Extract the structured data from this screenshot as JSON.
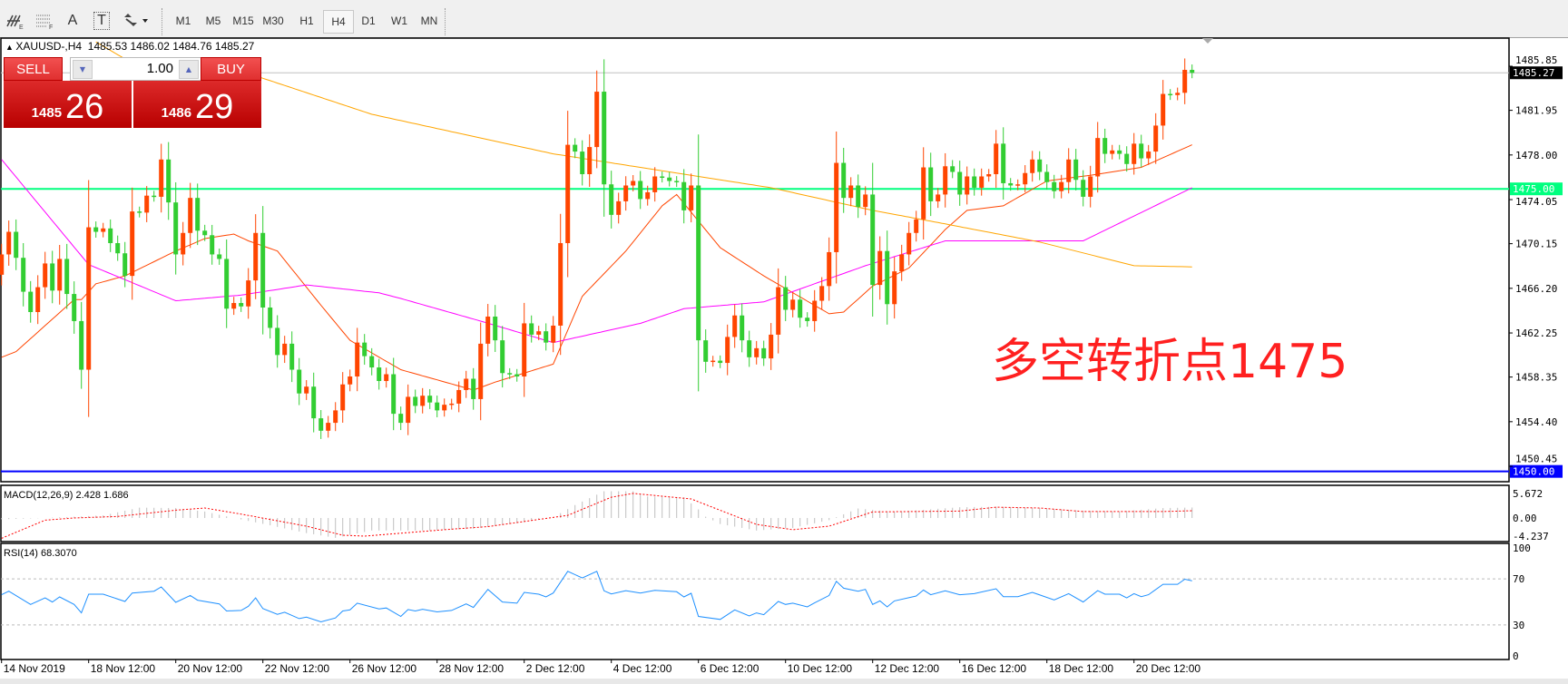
{
  "toolbar": {
    "tools": [
      {
        "icon": "elliott-wave-icon"
      },
      {
        "icon": "fibonacci-icon"
      },
      {
        "icon": "text-icon",
        "label": "A"
      },
      {
        "icon": "text-label-icon",
        "label": "T"
      },
      {
        "icon": "arrows-dropdown-icon"
      }
    ],
    "timeframes": [
      "M1",
      "M5",
      "M15",
      "M30",
      "H1",
      "H4",
      "D1",
      "W1",
      "MN"
    ],
    "selected_timeframe": "H4"
  },
  "chart_header": {
    "symbol": "XAUUSD-,H4",
    "ohlc": "1485.53 1486.02 1484.76 1485.27"
  },
  "trade_panel": {
    "sell_label": "SELL",
    "buy_label": "BUY",
    "volume": "1.00",
    "sell_price_big": "1485",
    "sell_price_pips": "26",
    "buy_price_big": "1486",
    "buy_price_pips": "29"
  },
  "annotation": "多空转折点1475",
  "colors": {
    "bull_candle": "#ff4500",
    "bear_candle": "#32cd32",
    "ma_fast": "#ff4500",
    "ma_mid": "#ff00ff",
    "ma_slow": "#ffa500",
    "level_green": "#00ff7f",
    "level_blue": "#0000ff",
    "bid_line": "#c0c0c0",
    "rsi": "#1e90ff",
    "macd_signal": "#ff0000",
    "macd_hist": "#c0c0c0"
  },
  "chart_data": {
    "type": "candlestick",
    "symbol": "XAUUSD-",
    "timeframe": "H4",
    "ylim": [
      1449.09,
      1488.34
    ],
    "first_open": 1467.4,
    "close": [
      1469.2,
      1471.2,
      1468.9,
      1465.9,
      1464.1,
      1466.3,
      1468.4,
      1466.0,
      1468.8,
      1465.7,
      1463.3,
      1459.0,
      1471.6,
      1471.2,
      1471.5,
      1470.2,
      1469.3,
      1467.3,
      1473.0,
      1472.9,
      1474.4,
      1474.3,
      1477.6,
      1473.8,
      1469.2,
      1471.1,
      1474.2,
      1471.3,
      1470.9,
      1469.2,
      1468.8,
      1464.4,
      1464.9,
      1464.6,
      1466.9,
      1471.1,
      1464.5,
      1462.7,
      1460.3,
      1461.3,
      1459.0,
      1456.9,
      1457.5,
      1454.7,
      1453.6,
      1454.3,
      1455.4,
      1457.7,
      1458.4,
      1461.4,
      1460.2,
      1459.2,
      1458.0,
      1458.6,
      1455.1,
      1454.3,
      1456.6,
      1455.8,
      1456.7,
      1456.1,
      1455.4,
      1455.9,
      1456.0,
      1457.2,
      1458.2,
      1456.4,
      1461.3,
      1463.7,
      1461.6,
      1458.7,
      1458.6,
      1458.4,
      1463.1,
      1462.1,
      1462.4,
      1461.4,
      1462.9,
      1470.2,
      1478.9,
      1478.3,
      1476.3,
      1478.7,
      1483.6,
      1475.4,
      1472.7,
      1473.9,
      1475.3,
      1475.7,
      1474.1,
      1474.7,
      1476.1,
      1476.0,
      1475.7,
      1475.6,
      1473.1,
      1475.3,
      1461.6,
      1459.7,
      1459.8,
      1459.6,
      1461.9,
      1463.8,
      1461.6,
      1460.1,
      1460.9,
      1460.0,
      1462.1,
      1466.3,
      1464.3,
      1465.2,
      1463.6,
      1463.3,
      1465.1,
      1466.4,
      1469.4,
      1477.3,
      1474.2,
      1475.3,
      1473.4,
      1474.5,
      1466.5,
      1469.5,
      1464.8,
      1467.7,
      1469.2,
      1471.1,
      1472.3,
      1476.9,
      1473.9,
      1474.5,
      1477.0,
      1476.5,
      1474.5,
      1476.1,
      1475.1,
      1476.1,
      1476.3,
      1479.0,
      1475.5,
      1475.3,
      1475.4,
      1476.4,
      1477.6,
      1476.5,
      1475.6,
      1474.8,
      1475.6,
      1477.6,
      1475.8,
      1474.3,
      1476.1,
      1479.5,
      1478.1,
      1478.4,
      1478.1,
      1477.2,
      1479.0,
      1477.7,
      1478.3,
      1480.6,
      1483.4,
      1483.3,
      1483.5,
      1485.53,
      1485.27
    ],
    "moving_averages": [
      {
        "color_key": "ma_fast",
        "points": [
          [
            1,
            1460.1
          ],
          [
            3,
            1460.6
          ],
          [
            11,
            1465.2
          ],
          [
            12,
            1465.2
          ],
          [
            14,
            1466.6
          ],
          [
            18,
            1467.3
          ],
          [
            25,
            1469.5
          ],
          [
            29,
            1470.6
          ],
          [
            33,
            1471.0
          ],
          [
            35,
            1470.4
          ],
          [
            39,
            1469.5
          ],
          [
            45,
            1464.7
          ],
          [
            49,
            1461.6
          ],
          [
            56,
            1459.0
          ],
          [
            66,
            1457.2
          ],
          [
            69,
            1457.9
          ],
          [
            77,
            1459.5
          ],
          [
            81,
            1465.5
          ],
          [
            87,
            1469.5
          ],
          [
            92,
            1473.5
          ],
          [
            94,
            1474.5
          ],
          [
            100,
            1469.8
          ],
          [
            106,
            1467.3
          ],
          [
            115,
            1463.95
          ],
          [
            117,
            1464.1
          ],
          [
            121,
            1466.4
          ],
          [
            126,
            1468.0
          ],
          [
            131,
            1471.4
          ],
          [
            134,
            1473.1
          ],
          [
            139,
            1473.5
          ],
          [
            145,
            1475.7
          ],
          [
            151,
            1476.2
          ],
          [
            158,
            1476.9
          ],
          [
            165,
            1478.9
          ]
        ]
      },
      {
        "color_key": "ma_mid",
        "points": [
          [
            1,
            1477.6
          ],
          [
            13,
            1468.3
          ],
          [
            25,
            1465.1
          ],
          [
            34,
            1465.6
          ],
          [
            43,
            1466.5
          ],
          [
            53,
            1465.8
          ],
          [
            56,
            1465.3
          ],
          [
            67,
            1463.3
          ],
          [
            77,
            1461.4
          ],
          [
            89,
            1463.1
          ],
          [
            95,
            1464.4
          ],
          [
            106,
            1465.0
          ],
          [
            120,
            1468.2
          ],
          [
            131,
            1470.4
          ],
          [
            150,
            1470.4
          ],
          [
            165,
            1475.1
          ]
        ]
      },
      {
        "color_key": "ma_slow",
        "points": [
          [
            14,
            1488.0
          ],
          [
            18,
            1486.5
          ],
          [
            36,
            1485.0
          ],
          [
            52,
            1481.6
          ],
          [
            77,
            1478.1
          ],
          [
            107,
            1475.1
          ],
          [
            121,
            1473.1
          ],
          [
            131,
            1471.9
          ],
          [
            144,
            1470.3
          ],
          [
            157,
            1468.2
          ],
          [
            165,
            1468.1
          ]
        ]
      }
    ],
    "levels": [
      {
        "value": 1485.27,
        "label": "1485.27",
        "color_key": "bid_line"
      },
      {
        "value": 1475.0,
        "label": "1475.00",
        "color_key": "level_green"
      },
      {
        "value": 1450.0,
        "label": "1450.00",
        "color_key": "level_blue"
      }
    ],
    "y_ticks": [
      "1485.85",
      "1481.95",
      "1478.00",
      "1474.05",
      "1470.15",
      "1466.20",
      "1462.25",
      "1458.35",
      "1454.40",
      "1450.45"
    ],
    "x_ticks": [
      {
        "label": "14 Nov 2019",
        "bar": 1
      },
      {
        "label": "18 Nov 12:00",
        "bar": 13
      },
      {
        "label": "20 Nov 12:00",
        "bar": 25
      },
      {
        "label": "22 Nov 12:00",
        "bar": 37
      },
      {
        "label": "26 Nov 12:00",
        "bar": 49
      },
      {
        "label": "28 Nov 12:00",
        "bar": 61
      },
      {
        "label": "2 Dec 12:00",
        "bar": 73
      },
      {
        "label": "4 Dec 12:00",
        "bar": 85
      },
      {
        "label": "6 Dec 12:00",
        "bar": 97
      },
      {
        "label": "10 Dec 12:00",
        "bar": 109
      },
      {
        "label": "12 Dec 12:00",
        "bar": 121
      },
      {
        "label": "16 Dec 12:00",
        "bar": 133
      },
      {
        "label": "18 Dec 12:00",
        "bar": 145
      },
      {
        "label": "20 Dec 12:00",
        "bar": 157
      }
    ],
    "macd": {
      "label": "MACD(12,26,9) 2.428 1.686",
      "ylim": [
        -5.46,
        7.14
      ],
      "y_ticks": [
        "5.672",
        "0.00",
        "-4.237"
      ],
      "y_tick_values": [
        5.672,
        0,
        -4.237
      ],
      "histogram_points": [
        [
          1,
          -0.3
        ],
        [
          7,
          0.0
        ],
        [
          15,
          0.6
        ],
        [
          20,
          2.4
        ],
        [
          25,
          2.3
        ],
        [
          29,
          1.5
        ],
        [
          33,
          0.0
        ],
        [
          38,
          -1.7
        ],
        [
          43,
          -3.5
        ],
        [
          47,
          -4.6
        ],
        [
          52,
          -2.9
        ],
        [
          60,
          -2.9
        ],
        [
          66,
          -2.5
        ],
        [
          73,
          -1.0
        ],
        [
          77,
          0.2
        ],
        [
          80,
          3.0
        ],
        [
          84,
          6.2
        ],
        [
          88,
          6.2
        ],
        [
          90,
          5.0
        ],
        [
          95,
          4.8
        ],
        [
          97,
          2.0
        ],
        [
          98,
          0.3
        ],
        [
          100,
          -1.4
        ],
        [
          105,
          -2.9
        ],
        [
          110,
          -2.3
        ],
        [
          115,
          -0.5
        ],
        [
          119,
          2.2
        ],
        [
          124,
          1.4
        ],
        [
          133,
          2.5
        ],
        [
          138,
          2.6
        ],
        [
          144,
          2.3
        ],
        [
          150,
          1.7
        ],
        [
          155,
          1.5
        ],
        [
          161,
          2.3
        ],
        [
          165,
          2.428
        ]
      ],
      "signal_points": [
        [
          1,
          -4.7
        ],
        [
          7,
          -0.5
        ],
        [
          11,
          0
        ],
        [
          17,
          0.35
        ],
        [
          25,
          1.8
        ],
        [
          29,
          2.3
        ],
        [
          34,
          0.9
        ],
        [
          43,
          -1.9
        ],
        [
          48,
          -4.0
        ],
        [
          51,
          -4.2
        ],
        [
          62,
          -2.7
        ],
        [
          68,
          -2.0
        ],
        [
          79,
          0.6
        ],
        [
          85,
          4.8
        ],
        [
          88,
          5.7
        ],
        [
          96,
          4.4
        ],
        [
          105,
          -1.5
        ],
        [
          110,
          -2.7
        ],
        [
          115,
          -1.9
        ],
        [
          121,
          1.4
        ],
        [
          133,
          1.6
        ],
        [
          138,
          2.5
        ],
        [
          144,
          2.3
        ],
        [
          150,
          1.5
        ],
        [
          161,
          1.5
        ],
        [
          165,
          1.686
        ]
      ]
    },
    "rsi": {
      "label": "RSI(14) 68.3070",
      "ylim": [
        0,
        100
      ],
      "y_ticks": [
        "100",
        "70",
        "30",
        "0"
      ],
      "y_tick_values": [
        100,
        70,
        30,
        0
      ],
      "levels": [
        70,
        30
      ],
      "points": [
        [
          1,
          56.2
        ],
        [
          2,
          59.3
        ],
        [
          5,
          47.8
        ],
        [
          7,
          53.5
        ],
        [
          8,
          49.9
        ],
        [
          9,
          54.3
        ],
        [
          11,
          47.8
        ],
        [
          12,
          40.5
        ],
        [
          13,
          56.7
        ],
        [
          15,
          56.7
        ],
        [
          18,
          50.4
        ],
        [
          19,
          57.7
        ],
        [
          22,
          59.3
        ],
        [
          23,
          63.0
        ],
        [
          25,
          49.6
        ],
        [
          27,
          55.6
        ],
        [
          28,
          51.5
        ],
        [
          31,
          48.3
        ],
        [
          32,
          42.1
        ],
        [
          34,
          42.6
        ],
        [
          35,
          46.2
        ],
        [
          36,
          53.5
        ],
        [
          37,
          44.2
        ],
        [
          39,
          39.2
        ],
        [
          40,
          41.0
        ],
        [
          42,
          35.5
        ],
        [
          43,
          36.8
        ],
        [
          45,
          32.7
        ],
        [
          47,
          36.1
        ],
        [
          48,
          42.1
        ],
        [
          49,
          43.1
        ],
        [
          50,
          48.9
        ],
        [
          53,
          43.9
        ],
        [
          54,
          44.7
        ],
        [
          56,
          37.4
        ],
        [
          57,
          43.4
        ],
        [
          58,
          42.1
        ],
        [
          59,
          43.6
        ],
        [
          61,
          41.3
        ],
        [
          63,
          42.6
        ],
        [
          65,
          48.3
        ],
        [
          66,
          45.2
        ],
        [
          68,
          60.9
        ],
        [
          70,
          49.9
        ],
        [
          72,
          48.9
        ],
        [
          73,
          58.3
        ],
        [
          75,
          56.7
        ],
        [
          76,
          54.3
        ],
        [
          77,
          57.7
        ],
        [
          79,
          76.5
        ],
        [
          81,
          70.8
        ],
        [
          83,
          76.5
        ],
        [
          84,
          59.6
        ],
        [
          85,
          56.9
        ],
        [
          87,
          59.8
        ],
        [
          89,
          57.7
        ],
        [
          91,
          60.1
        ],
        [
          94,
          58.8
        ],
        [
          95,
          54.3
        ],
        [
          96,
          57.5
        ],
        [
          97,
          37.4
        ],
        [
          100,
          34.8
        ],
        [
          102,
          43.1
        ],
        [
          104,
          37.9
        ],
        [
          105,
          40.5
        ],
        [
          106,
          38.9
        ],
        [
          108,
          50.4
        ],
        [
          109,
          47.8
        ],
        [
          110,
          48.9
        ],
        [
          112,
          45.7
        ],
        [
          113,
          49.1
        ],
        [
          115,
          55.6
        ],
        [
          116,
          67.9
        ],
        [
          117,
          61.9
        ],
        [
          119,
          59.3
        ],
        [
          120,
          60.9
        ],
        [
          121,
          47.8
        ],
        [
          122,
          50.9
        ],
        [
          123,
          45.7
        ],
        [
          124,
          50.9
        ],
        [
          127,
          55.1
        ],
        [
          128,
          60.3
        ],
        [
          129,
          56.2
        ],
        [
          131,
          59.6
        ],
        [
          133,
          56.2
        ],
        [
          135,
          57.2
        ],
        [
          138,
          61.4
        ],
        [
          139,
          54.6
        ],
        [
          141,
          54.6
        ],
        [
          143,
          58.3
        ],
        [
          146,
          51.7
        ],
        [
          148,
          57.2
        ],
        [
          150,
          49.9
        ],
        [
          152,
          59.8
        ],
        [
          153,
          56.7
        ],
        [
          155,
          56.7
        ],
        [
          156,
          53.5
        ],
        [
          157,
          57.2
        ],
        [
          158,
          54.6
        ],
        [
          159,
          56.2
        ],
        [
          161,
          65.3
        ],
        [
          163,
          65.3
        ],
        [
          164,
          69.7
        ],
        [
          165,
          68.3
        ]
      ]
    }
  }
}
